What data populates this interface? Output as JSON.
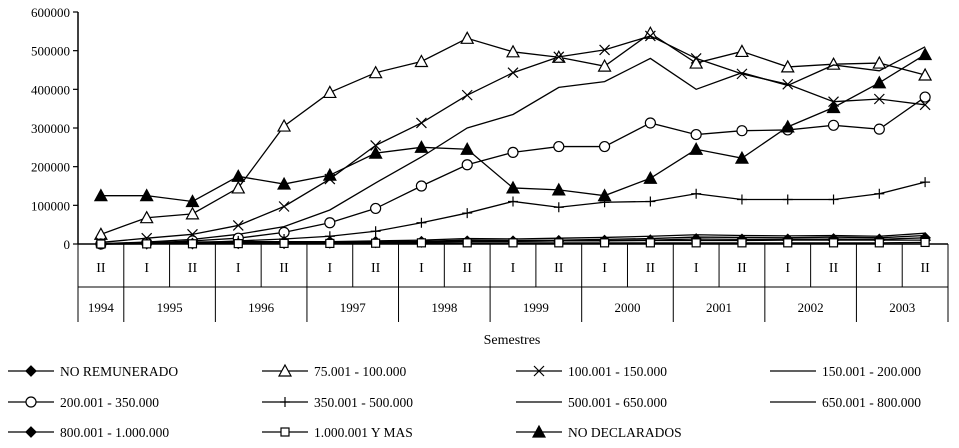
{
  "chart_data": {
    "type": "line",
    "xlabel": "Semestres",
    "ylabel": "",
    "ylim": [
      0,
      600000
    ],
    "yticks": [
      "0",
      "100000",
      "200000",
      "300000",
      "400000",
      "500000",
      "600000"
    ],
    "x": [
      "II",
      "I",
      "II",
      "I",
      "II",
      "I",
      "II",
      "I",
      "II",
      "I",
      "II",
      "I",
      "II",
      "I",
      "II",
      "I",
      "II",
      "I",
      "II"
    ],
    "years": [
      "1994",
      "1995",
      "1996",
      "1997",
      "1998",
      "1999",
      "2000",
      "2001",
      "2002",
      "2003"
    ],
    "grid": false,
    "legend_position": "bottom",
    "series": [
      {
        "name": "NO REMUNERADO",
        "marker": "diamond-filled",
        "values": [
          0,
          3000,
          5000,
          6000,
          6000,
          6000,
          6000,
          6000,
          7000,
          7000,
          8000,
          8000,
          9000,
          9000,
          9000,
          10000,
          10000,
          10000,
          10000
        ]
      },
      {
        "name": "75.001  -   100.000",
        "marker": "triangle-open",
        "values": [
          25000,
          68000,
          78000,
          145000,
          305000,
          392000,
          443000,
          472000,
          532000,
          497000,
          483000,
          460000,
          545000,
          468000,
          498000,
          458000,
          465000,
          468000,
          437000
        ]
      },
      {
        "name": "100.001  -   150.000",
        "marker": "x",
        "values": [
          4000,
          15000,
          25000,
          48000,
          97000,
          168000,
          255000,
          313000,
          385000,
          443000,
          484000,
          502000,
          538000,
          480000,
          440000,
          413000,
          368000,
          375000,
          360000
        ]
      },
      {
        "name": "150.001  -   200.000",
        "marker": "star",
        "values": [
          1000,
          5000,
          12000,
          25000,
          45000,
          88000,
          158000,
          225000,
          300000,
          335000,
          405000,
          420000,
          480000,
          400000,
          443000,
          410000,
          463000,
          448000,
          510000
        ]
      },
      {
        "name": "200.001  -   350.000",
        "marker": "circle-open",
        "values": [
          0,
          3000,
          8000,
          15000,
          30000,
          55000,
          92000,
          150000,
          205000,
          237000,
          252000,
          252000,
          313000,
          283000,
          293000,
          295000,
          307000,
          297000,
          380000
        ]
      },
      {
        "name": "350.001  -   500.000",
        "marker": "plus",
        "values": [
          0,
          1000,
          3000,
          8000,
          13000,
          20000,
          33000,
          55000,
          80000,
          110000,
          95000,
          108000,
          110000,
          130000,
          115000,
          115000,
          115000,
          130000,
          160000
        ]
      },
      {
        "name": "500.001  -   650.000",
        "marker": "plus-dash",
        "values": [
          0,
          1000,
          2000,
          4000,
          5000,
          6000,
          8000,
          10000,
          14000,
          13000,
          15000,
          17000,
          20000,
          24000,
          22000,
          21000,
          22000,
          20000,
          28000
        ]
      },
      {
        "name": "650.001  -   800.000",
        "marker": "dash",
        "values": [
          0,
          500,
          1000,
          2000,
          3000,
          4000,
          5000,
          7000,
          10000,
          9000,
          10000,
          12000,
          14000,
          18000,
          17000,
          16000,
          18000,
          16000,
          22000
        ]
      },
      {
        "name": "800.001  -   1.000.000",
        "marker": "diamond-filled",
        "values": [
          0,
          500,
          1000,
          1500,
          2000,
          3000,
          4000,
          5000,
          7000,
          7000,
          8000,
          9000,
          10000,
          13000,
          12000,
          12000,
          13000,
          12000,
          16000
        ]
      },
      {
        "name": "1.000.001  Y  MAS",
        "marker": "square-open",
        "values": [
          0,
          300,
          600,
          1000,
          1500,
          1500,
          2000,
          3000,
          3000,
          3000,
          3000,
          3000,
          3000,
          3000,
          3000,
          3000,
          3000,
          3000,
          4000
        ]
      },
      {
        "name": "NO DECLARADOS",
        "marker": "triangle-filled",
        "values": [
          125000,
          125000,
          110000,
          175000,
          155000,
          178000,
          235000,
          250000,
          245000,
          145000,
          140000,
          125000,
          170000,
          245000,
          222000,
          303000,
          353000,
          417000,
          490000
        ]
      }
    ]
  }
}
